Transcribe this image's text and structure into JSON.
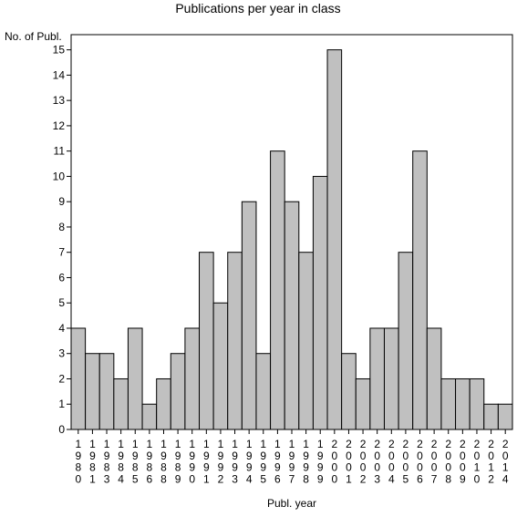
{
  "chart_data": {
    "type": "bar",
    "title": "Publications per year in class",
    "ylabel": "No. of Publ.",
    "xlabel": "Publ. year",
    "ylim": [
      0,
      15.6
    ],
    "yticks": [
      0,
      1,
      2,
      3,
      4,
      5,
      6,
      7,
      8,
      9,
      10,
      11,
      12,
      13,
      14,
      15
    ],
    "grid": false,
    "legend": "none",
    "bar_color": "#c0c0c0",
    "categories": [
      "1980",
      "1981",
      "1983",
      "1984",
      "1985",
      "1986",
      "1988",
      "1989",
      "1990",
      "1991",
      "1992",
      "1993",
      "1994",
      "1995",
      "1996",
      "1997",
      "1998",
      "1999",
      "2000",
      "2001",
      "2002",
      "2003",
      "2004",
      "2005",
      "2006",
      "2007",
      "2008",
      "2009",
      "2010",
      "2012",
      "2014"
    ],
    "values": [
      4,
      3,
      3,
      2,
      4,
      1,
      2,
      3,
      4,
      7,
      5,
      7,
      9,
      3,
      11,
      9,
      7,
      10,
      15,
      3,
      2,
      4,
      4,
      7,
      11,
      4,
      2,
      2,
      2,
      1,
      1
    ]
  }
}
